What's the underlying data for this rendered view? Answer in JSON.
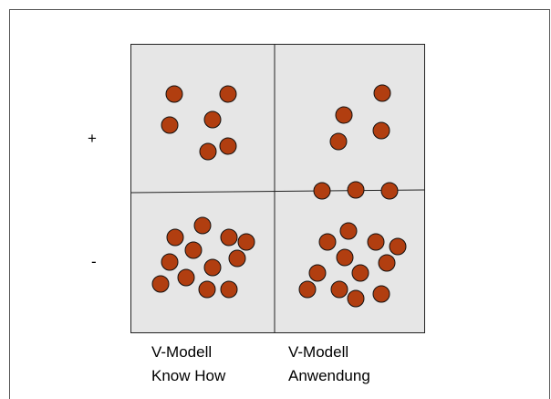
{
  "row_labels": [
    "+",
    "-"
  ],
  "column_labels": [
    [
      "V-Modell",
      "Know How"
    ],
    [
      "V-Modell",
      "Anwendung"
    ]
  ]
}
